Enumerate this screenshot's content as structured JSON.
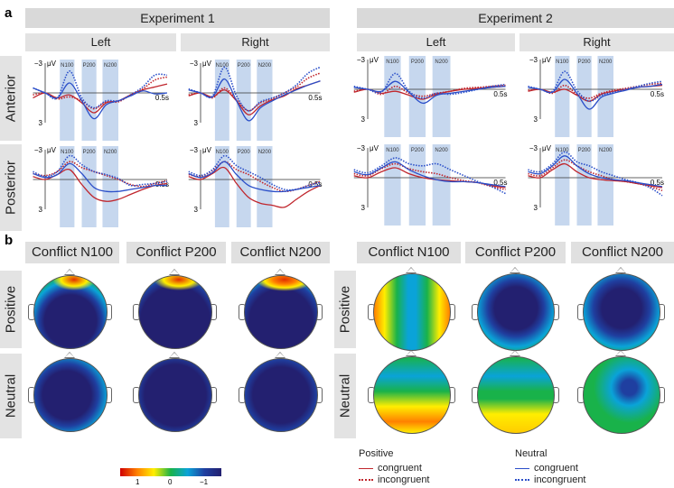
{
  "labels": {
    "a": "a",
    "b": "b",
    "exp1": "Experiment 1",
    "exp2": "Experiment 2",
    "left": "Left",
    "right": "Right",
    "anterior": "Anterior",
    "posterior": "Posterior",
    "positive": "Positive",
    "neutral": "Neutral"
  },
  "topo_titles": [
    "Conflict N100",
    "Conflict P200",
    "Conflict N200"
  ],
  "colorbar": {
    "ticks": [
      "1",
      "0",
      "−1"
    ],
    "colors": [
      "#d00000",
      "#ff8000",
      "#ffee00",
      "#19b24a",
      "#0aa3d8",
      "#1f3fa0",
      "#232070"
    ]
  },
  "legend": {
    "positive": {
      "title": "Positive",
      "congruent": "congruent",
      "incongruent": "incongruent",
      "color": "#c0262d"
    },
    "neutral": {
      "title": "Neutral",
      "congruent": "congruent",
      "incongruent": "incongruent",
      "color": "#2b4fc9"
    }
  },
  "chart_data": {
    "type": "line",
    "xlabel_end": "0.5s",
    "ytop": "−3",
    "ybottom": "3",
    "yunit": "μV",
    "ylim": [
      -3,
      3
    ],
    "xlim": [
      -50,
      500
    ],
    "y_inverted": true,
    "windows": [
      {
        "name": "N100",
        "range": [
          60,
          120
        ]
      },
      {
        "name": "P200",
        "range": [
          150,
          210
        ]
      },
      {
        "name": "N200",
        "range": [
          235,
          300
        ]
      }
    ],
    "x": [
      -50,
      0,
      50,
      100,
      150,
      200,
      250,
      300,
      350,
      400,
      450,
      500
    ],
    "panels": [
      {
        "experiment": "Experiment 1",
        "hemisphere": "Left",
        "region": "Anterior",
        "series": {
          "positive_congruent": [
            0.5,
            0,
            0.5,
            0.2,
            1.0,
            2.0,
            1.0,
            0.8,
            0.2,
            -0.3,
            -0.6,
            -0.9
          ],
          "positive_incongruent": [
            0.2,
            0,
            0.6,
            0.4,
            0.8,
            1.6,
            0.9,
            0.9,
            0.2,
            -0.4,
            -1.3,
            -1.6
          ],
          "neutral_congruent": [
            -0.5,
            0,
            0.5,
            -1.0,
            0.8,
            2.6,
            1.2,
            0.8,
            0.3,
            -0.2,
            0.1,
            0
          ],
          "neutral_incongruent": [
            -0.5,
            0,
            0.5,
            -2.2,
            0.5,
            1.5,
            0.8,
            0.8,
            0.2,
            -0.6,
            -1.8,
            -1.8
          ]
        }
      },
      {
        "experiment": "Experiment 1",
        "hemisphere": "Left",
        "region": "Posterior",
        "series": {
          "positive_congruent": [
            -0.3,
            0,
            -0.5,
            -1.0,
            0.5,
            1.8,
            2.2,
            2.0,
            1.5,
            1.0,
            0.6,
            0.4
          ],
          "positive_incongruent": [
            -0.6,
            -0.4,
            -0.8,
            -1.8,
            -1.2,
            -0.8,
            -0.4,
            0,
            0.5,
            0.7,
            0.4,
            0.1
          ],
          "neutral_congruent": [
            -0.6,
            -0.2,
            -0.5,
            -1.6,
            -0.6,
            0.8,
            1.2,
            1.2,
            1.0,
            0.8,
            0.6,
            0.6
          ],
          "neutral_incongruent": [
            -0.8,
            -0.3,
            -0.8,
            -2.4,
            -1.5,
            -0.8,
            -0.5,
            -0.1,
            0.6,
            0.5,
            0.4,
            0.2
          ]
        }
      },
      {
        "experiment": "Experiment 1",
        "hemisphere": "Right",
        "region": "Anterior",
        "series": {
          "positive_congruent": [
            0.3,
            0,
            0.4,
            -0.3,
            0.8,
            2.2,
            1.3,
            0.7,
            0.3,
            -0.4,
            -0.8,
            -1.2
          ],
          "positive_incongruent": [
            0.2,
            0,
            0.5,
            -0.5,
            0.7,
            1.8,
            1.0,
            0.6,
            0,
            -0.6,
            -1.5,
            -2.0
          ],
          "neutral_congruent": [
            -0.3,
            0,
            0.4,
            -1.4,
            0.8,
            2.8,
            1.5,
            0.8,
            0.2,
            -0.3,
            -0.8,
            -1.2
          ],
          "neutral_incongruent": [
            -0.4,
            0,
            0.3,
            -2.6,
            0.3,
            1.8,
            0.9,
            0.5,
            0,
            -0.8,
            -2.0,
            -2.6
          ]
        }
      },
      {
        "experiment": "Experiment 1",
        "hemisphere": "Right",
        "region": "Posterior",
        "series": {
          "positive_congruent": [
            -0.3,
            0,
            -0.6,
            -1.2,
            0.4,
            1.8,
            2.4,
            2.6,
            2.8,
            2.0,
            1.2,
            0.6
          ],
          "positive_incongruent": [
            -0.5,
            -0.3,
            -0.9,
            -1.8,
            -1.0,
            -0.5,
            0.2,
            0.8,
            1.2,
            1.0,
            0.6,
            0.2
          ],
          "neutral_congruent": [
            -0.6,
            -0.2,
            -0.7,
            -1.8,
            -0.5,
            0.6,
            1.0,
            1.2,
            1.2,
            1.0,
            0.8,
            0.6
          ],
          "neutral_incongruent": [
            -0.8,
            -0.4,
            -1.0,
            -2.4,
            -1.4,
            -0.8,
            -0.2,
            0.5,
            1.0,
            1.0,
            0.6,
            0.3
          ]
        }
      },
      {
        "experiment": "Experiment 2",
        "hemisphere": "Left",
        "region": "Anterior",
        "series": {
          "positive_congruent": [
            0.3,
            0,
            0.4,
            0.2,
            0.6,
            1.0,
            0.5,
            0.2,
            0,
            -0.1,
            -0.2,
            -0.3
          ],
          "positive_incongruent": [
            0.2,
            0,
            0.5,
            -0.3,
            0.4,
            0.7,
            0.4,
            0.2,
            -0.1,
            -0.2,
            -0.3,
            -0.4
          ],
          "neutral_congruent": [
            -0.2,
            0,
            0.2,
            -0.8,
            0.3,
            1.4,
            0.6,
            0.4,
            0.2,
            0,
            -0.2,
            -0.3
          ],
          "neutral_incongruent": [
            -0.3,
            0,
            0.3,
            -1.6,
            0.2,
            0.9,
            0.4,
            0.5,
            0.3,
            0,
            -0.3,
            -0.5
          ]
        }
      },
      {
        "experiment": "Experiment 2",
        "hemisphere": "Left",
        "region": "Posterior",
        "series": {
          "positive_congruent": [
            -0.2,
            0,
            -0.6,
            -1.0,
            -0.4,
            0,
            0.2,
            0.3,
            0.4,
            0.5,
            0.8,
            1.0
          ],
          "positive_incongruent": [
            -0.4,
            -0.2,
            -0.9,
            -1.4,
            -0.9,
            -0.6,
            -0.4,
            0,
            0.3,
            0.5,
            0.9,
            1.2
          ],
          "neutral_congruent": [
            -0.6,
            -0.3,
            -1.0,
            -1.6,
            -0.8,
            -0.2,
            0.2,
            0.4,
            0.4,
            0.5,
            0.7,
            0.9
          ],
          "neutral_incongruent": [
            -0.8,
            -0.5,
            -1.2,
            -2.0,
            -1.4,
            -1.2,
            -1.4,
            -0.8,
            -0.2,
            0.4,
            0.9,
            1.6
          ]
        }
      },
      {
        "experiment": "Experiment 2",
        "hemisphere": "Right",
        "region": "Anterior",
        "series": {
          "positive_congruent": [
            0.2,
            0,
            0.3,
            0,
            0.6,
            1.2,
            0.5,
            0.2,
            0,
            -0.2,
            -0.3,
            -0.4
          ],
          "positive_incongruent": [
            0.1,
            0,
            0.4,
            -0.4,
            0.5,
            0.9,
            0.4,
            0.1,
            -0.1,
            -0.3,
            -0.5,
            -0.6
          ],
          "neutral_congruent": [
            -0.2,
            0,
            0.3,
            -1.0,
            0.4,
            2.0,
            0.8,
            0.4,
            0.1,
            -0.2,
            -0.3,
            -0.5
          ],
          "neutral_incongruent": [
            -0.3,
            0,
            0.2,
            -1.8,
            0.1,
            1.2,
            0.6,
            0.3,
            0,
            -0.3,
            -0.6,
            -0.8
          ]
        }
      },
      {
        "experiment": "Experiment 2",
        "hemisphere": "Right",
        "region": "Posterior",
        "series": {
          "positive_congruent": [
            -0.2,
            0,
            -0.8,
            -1.4,
            -0.6,
            0,
            0.2,
            0.3,
            0.4,
            0.6,
            0.8,
            1.0
          ],
          "positive_incongruent": [
            -0.4,
            -0.2,
            -1.0,
            -1.8,
            -1.2,
            -0.6,
            -0.2,
            0.2,
            0.4,
            0.6,
            0.9,
            1.3
          ],
          "neutral_congruent": [
            -0.6,
            -0.4,
            -1.2,
            -2.2,
            -1.2,
            -0.4,
            0,
            0.2,
            0.3,
            0.5,
            0.7,
            0.9
          ],
          "neutral_incongruent": [
            -0.8,
            -0.6,
            -1.4,
            -2.6,
            -1.6,
            -1.2,
            -0.6,
            -0.2,
            0.2,
            0.5,
            1.0,
            1.8
          ]
        }
      }
    ]
  }
}
